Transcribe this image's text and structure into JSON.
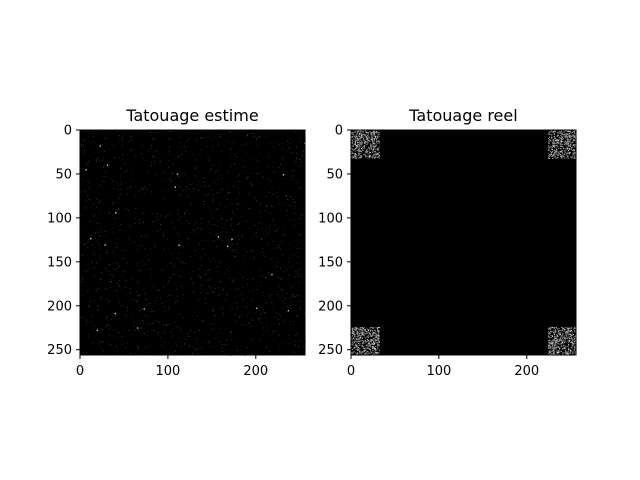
{
  "chart_data": [
    {
      "type": "heatmap",
      "title": "Tatouage estime",
      "xlabel": "",
      "ylabel": "",
      "xlim": [
        0,
        256
      ],
      "ylim": [
        256,
        0
      ],
      "x_ticks": [
        0,
        100,
        200
      ],
      "y_ticks": [
        0,
        50,
        100,
        150,
        200,
        250
      ],
      "colormap": "gray",
      "background": "#000000",
      "grid": false,
      "content": "sparse faint noise over the full 256x256 image"
    },
    {
      "type": "heatmap",
      "title": "Tatouage reel",
      "xlabel": "",
      "ylabel": "",
      "xlim": [
        0,
        256
      ],
      "ylim": [
        256,
        0
      ],
      "x_ticks": [
        0,
        100,
        200
      ],
      "y_ticks": [
        0,
        50,
        100,
        150,
        200,
        250
      ],
      "colormap": "gray",
      "background": "#000000",
      "grid": false,
      "content": "dense noise in the four corner blocks",
      "noise_blocks": [
        {
          "x": [
            0,
            32
          ],
          "y": [
            0,
            32
          ]
        },
        {
          "x": [
            224,
            256
          ],
          "y": [
            0,
            32
          ]
        },
        {
          "x": [
            0,
            32
          ],
          "y": [
            224,
            256
          ]
        },
        {
          "x": [
            224,
            256
          ],
          "y": [
            224,
            256
          ]
        }
      ]
    }
  ]
}
